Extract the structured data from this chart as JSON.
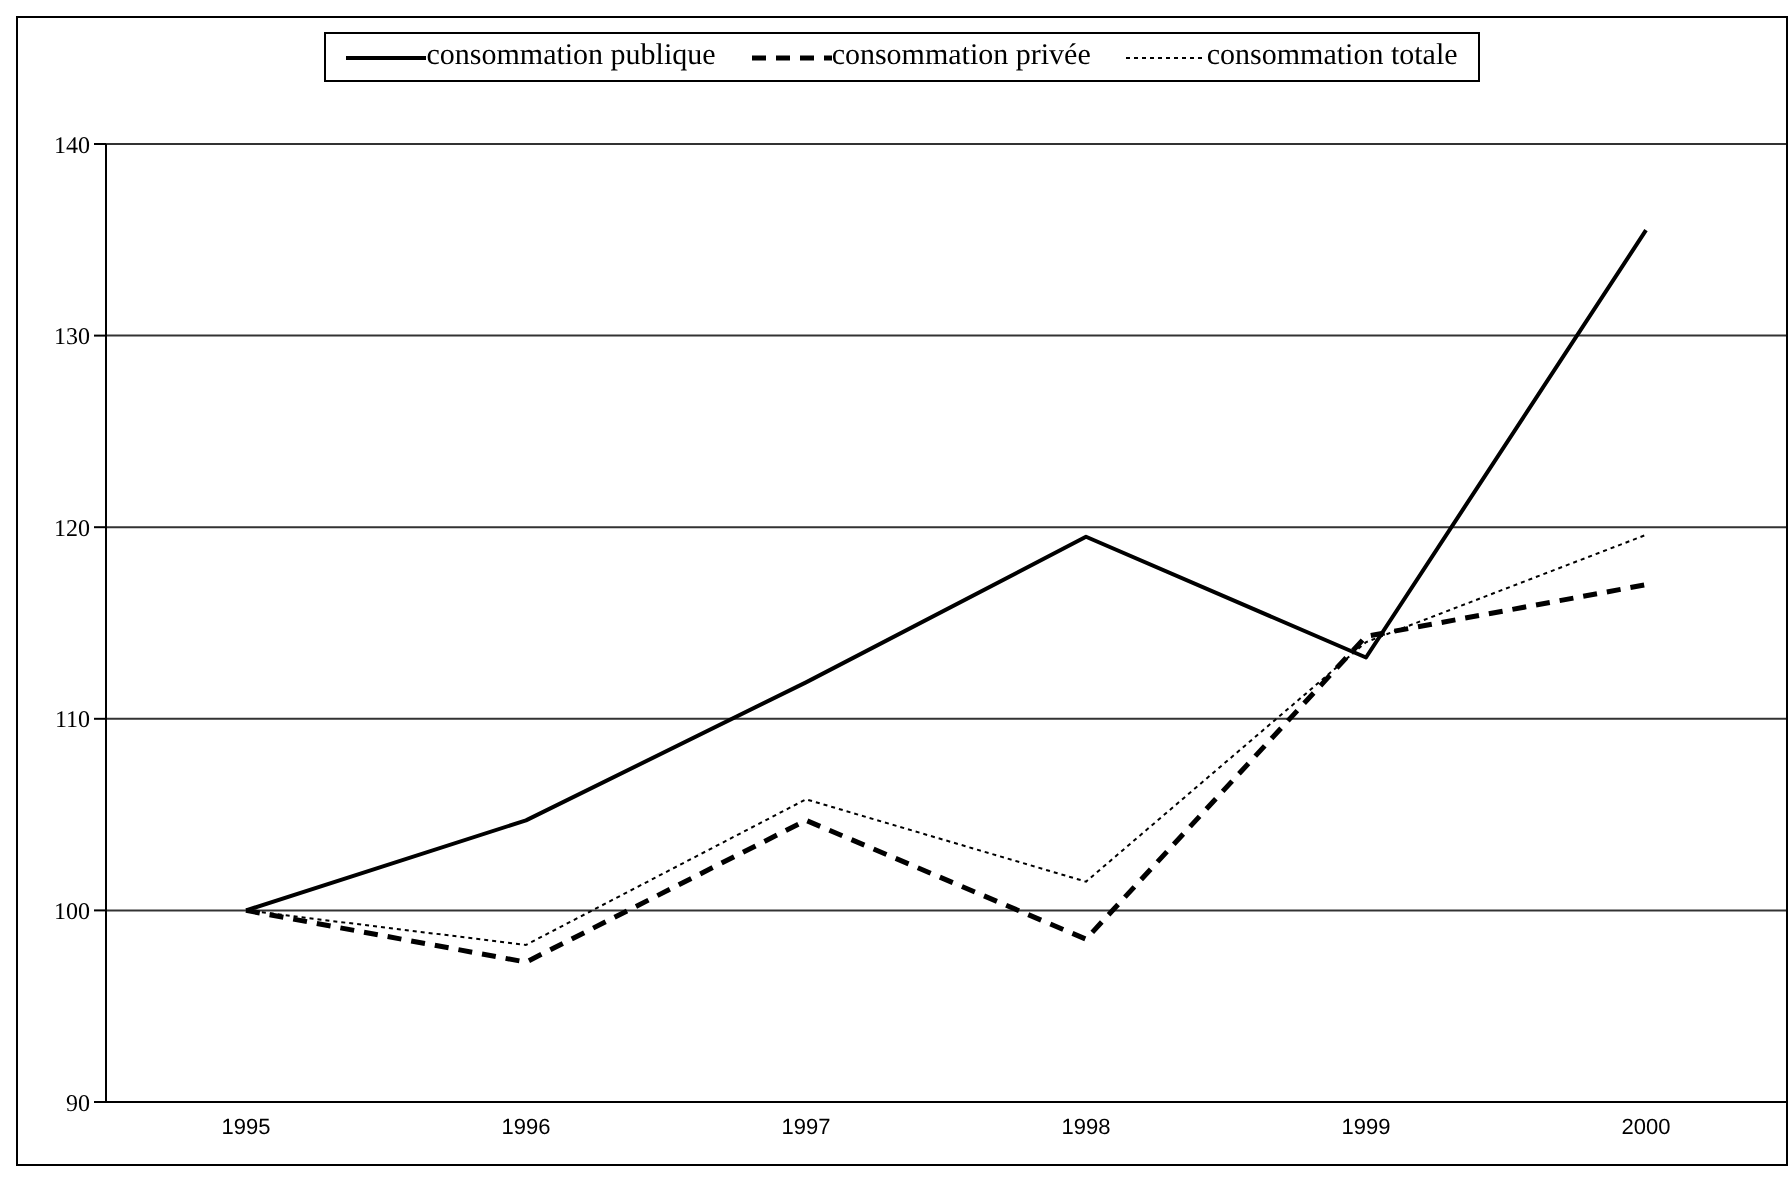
{
  "chart_data": {
    "type": "line",
    "categories": [
      "1995",
      "1996",
      "1997",
      "1998",
      "1999",
      "2000"
    ],
    "series": [
      {
        "name": "consommation publique",
        "color": "#000000",
        "line_style": "solid",
        "values": [
          100,
          104.7,
          111.9,
          119.5,
          113.2,
          135.5
        ]
      },
      {
        "name": "consommation privée",
        "color": "#000000",
        "line_style": "dashed",
        "values": [
          100,
          97.3,
          104.7,
          98.5,
          114.3,
          117.0
        ]
      },
      {
        "name": "consommation totale",
        "color": "#000000",
        "line_style": "dotted",
        "values": [
          100,
          98.2,
          105.8,
          101.5,
          114.0,
          119.6
        ]
      }
    ],
    "ylim": [
      90,
      140
    ],
    "yticks": [
      90,
      100,
      110,
      120,
      130,
      140
    ],
    "grid": "y",
    "legend": "top",
    "marker": "none"
  }
}
